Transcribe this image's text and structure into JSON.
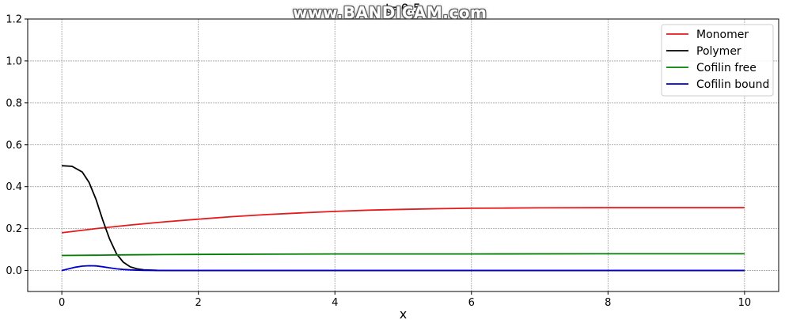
{
  "watermark": "www.BANDICAM.com",
  "chart_data": {
    "type": "line",
    "title": "t=0.5",
    "xlabel": "x",
    "ylabel": "",
    "xlim": [
      -0.5,
      10.5
    ],
    "ylim": [
      -0.1,
      1.2
    ],
    "xticks": [
      0,
      2,
      4,
      6,
      8,
      10
    ],
    "yticks": [
      0.0,
      0.2,
      0.4,
      0.6,
      0.8,
      1.0,
      1.2
    ],
    "xtick_labels": [
      "0",
      "2",
      "4",
      "6",
      "8",
      "10"
    ],
    "ytick_labels": [
      "0.0",
      "0.2",
      "0.4",
      "0.6",
      "0.8",
      "1.0",
      "1.2"
    ],
    "grid": true,
    "legend_position": "top-right",
    "series": [
      {
        "name": "Monomer",
        "color": "#e41a1c",
        "x": [
          0,
          0.5,
          1,
          1.5,
          2,
          2.5,
          3,
          3.5,
          4,
          4.5,
          5,
          5.5,
          6,
          6.5,
          7,
          8,
          9,
          10
        ],
        "y": [
          0.18,
          0.2,
          0.217,
          0.232,
          0.245,
          0.257,
          0.267,
          0.275,
          0.282,
          0.288,
          0.292,
          0.295,
          0.297,
          0.298,
          0.299,
          0.3,
          0.3,
          0.3
        ]
      },
      {
        "name": "Polymer",
        "color": "#000000",
        "x": [
          0,
          0.15,
          0.3,
          0.4,
          0.5,
          0.6,
          0.7,
          0.8,
          0.9,
          1.0,
          1.1,
          1.2,
          1.4,
          1.6,
          2,
          4,
          6,
          8,
          10
        ],
        "y": [
          0.5,
          0.497,
          0.47,
          0.42,
          0.34,
          0.24,
          0.15,
          0.08,
          0.04,
          0.018,
          0.008,
          0.003,
          0.001,
          0.0,
          0.0,
          0.0,
          0.0,
          0.0,
          0.0
        ]
      },
      {
        "name": "Cofilin free",
        "color": "#008000",
        "x": [
          0,
          0.5,
          1,
          1.5,
          2,
          3,
          4,
          6,
          8,
          10
        ],
        "y": [
          0.072,
          0.073,
          0.075,
          0.076,
          0.077,
          0.078,
          0.079,
          0.079,
          0.08,
          0.08
        ]
      },
      {
        "name": "Cofilin bound",
        "color": "#0000cc",
        "x": [
          0,
          0.1,
          0.2,
          0.3,
          0.4,
          0.5,
          0.6,
          0.7,
          0.8,
          0.9,
          1.0,
          1.1,
          1.2,
          1.4,
          2,
          4,
          6,
          8,
          10
        ],
        "y": [
          0.0,
          0.008,
          0.016,
          0.021,
          0.023,
          0.022,
          0.018,
          0.013,
          0.008,
          0.005,
          0.003,
          0.0015,
          0.0008,
          0.0,
          0.0,
          0.0,
          0.0,
          0.0,
          0.0
        ]
      }
    ]
  }
}
